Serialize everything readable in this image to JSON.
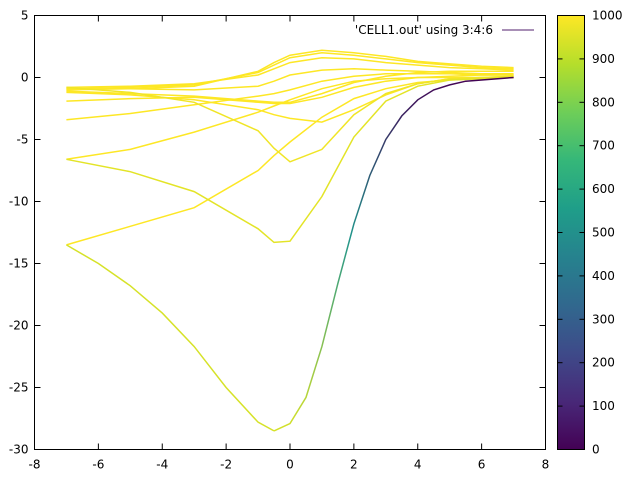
{
  "chart_data": {
    "type": "line",
    "title": "",
    "xlabel": "",
    "ylabel": "",
    "xlim": [
      -8,
      8
    ],
    "ylim": [
      -30,
      5
    ],
    "xticks": [
      -8,
      -6,
      -4,
      -2,
      0,
      2,
      4,
      6,
      8
    ],
    "yticks": [
      -30,
      -25,
      -20,
      -15,
      -10,
      -5,
      0,
      5
    ],
    "grid": false,
    "legend": {
      "position": "top-right",
      "label": "'CELL1.out' using 3:4:6",
      "color": "#8c6a9e"
    },
    "colorbar": {
      "min": 0,
      "max": 1000,
      "ticks": [
        0,
        100,
        200,
        300,
        400,
        500,
        600,
        700,
        800,
        900,
        1000
      ],
      "palette": [
        "#440154",
        "#482878",
        "#3e4a89",
        "#31688e",
        "#26828e",
        "#1f9e89",
        "#35b779",
        "#6ece58",
        "#b5de2b",
        "#fde725"
      ]
    },
    "series": [
      {
        "color_value": 1000,
        "x": [
          -7.0,
          -5.0,
          -3.0,
          -1.0,
          -0.5,
          0.0,
          1.0,
          2.0,
          3.0,
          4.0,
          5.0,
          6.0,
          7.0
        ],
        "y": [
          -13.5,
          -12.0,
          -10.5,
          -7.5,
          -6.3,
          -5.2,
          -3.2,
          -1.7,
          -0.9,
          -0.4,
          -0.2,
          -0.1,
          0.0
        ]
      },
      {
        "color_value": 1000,
        "x": [
          -7.0,
          -5.0,
          -3.0,
          -1.0,
          -0.5,
          0.0,
          1.0,
          2.0,
          3.0,
          4.0,
          5.0,
          6.0,
          7.0
        ],
        "y": [
          -6.6,
          -5.8,
          -4.4,
          -2.8,
          -2.3,
          -1.8,
          -0.9,
          -0.3,
          -0.1,
          0.0,
          0.0,
          0.0,
          0.0
        ]
      },
      {
        "color_value": 1000,
        "x": [
          -7.0,
          -5.0,
          -3.0,
          -1.0,
          -0.5,
          0.0,
          1.0,
          2.0,
          3.0,
          4.0,
          5.0,
          6.0,
          7.0
        ],
        "y": [
          -3.4,
          -2.9,
          -2.2,
          -1.5,
          -1.3,
          -1.0,
          -0.3,
          0.1,
          0.3,
          0.3,
          0.3,
          0.2,
          0.2
        ]
      },
      {
        "color_value": 1000,
        "x": [
          -7.0,
          -5.0,
          -3.0,
          -1.0,
          -0.5,
          0.0,
          1.0,
          2.0,
          3.0,
          4.0,
          5.0,
          6.0,
          7.0
        ],
        "y": [
          -1.9,
          -1.7,
          -1.6,
          -2.0,
          -2.1,
          -2.1,
          -1.6,
          -0.8,
          -0.3,
          0.0,
          0.1,
          0.2,
          0.2
        ]
      },
      {
        "color_value": 1000,
        "x": [
          -7.0,
          -5.0,
          -3.0,
          -1.0,
          -0.5,
          0.0,
          1.0,
          2.0,
          3.0,
          4.0,
          5.0,
          6.0,
          7.0
        ],
        "y": [
          -1.1,
          -1.3,
          -1.5,
          -1.9,
          -2.0,
          -2.0,
          -1.3,
          -0.4,
          0.1,
          0.4,
          0.5,
          0.5,
          0.5
        ]
      },
      {
        "color_value": 1000,
        "x": [
          -7.0,
          -5.0,
          -3.0,
          -1.0,
          -0.5,
          0.0,
          1.0,
          2.0,
          3.0,
          4.0,
          5.0,
          6.0,
          7.0
        ],
        "y": [
          -0.9,
          -0.9,
          -1.0,
          -0.7,
          -0.3,
          0.2,
          0.6,
          0.7,
          0.6,
          0.5,
          0.4,
          0.3,
          0.3
        ]
      },
      {
        "color_value": 1000,
        "x": [
          -7.0,
          -5.0,
          -3.0,
          -1.0,
          -0.5,
          0.0,
          1.0,
          2.0,
          3.0,
          4.0,
          5.0,
          6.0,
          7.0
        ],
        "y": [
          -0.8,
          -0.7,
          -0.5,
          0.2,
          0.7,
          1.2,
          1.6,
          1.5,
          1.2,
          1.0,
          0.8,
          0.7,
          0.6
        ]
      },
      {
        "color_value": 1000,
        "x": [
          -7.0,
          -5.0,
          -3.0,
          -1.0,
          -0.5,
          0.0,
          1.0,
          2.0,
          3.0,
          4.0,
          5.0,
          6.0,
          7.0
        ],
        "y": [
          -0.9,
          -0.8,
          -0.6,
          0.4,
          1.0,
          1.6,
          2.0,
          1.8,
          1.5,
          1.2,
          1.0,
          0.8,
          0.7
        ]
      },
      {
        "color_value": 1000,
        "x": [
          -7.0,
          -5.0,
          -3.0,
          -1.0,
          -0.5,
          0.0,
          1.0,
          2.0,
          3.0,
          4.0,
          5.0,
          6.0,
          7.0
        ],
        "y": [
          -1.0,
          -0.9,
          -0.7,
          0.5,
          1.2,
          1.8,
          2.2,
          2.0,
          1.7,
          1.3,
          1.1,
          0.9,
          0.8
        ]
      },
      {
        "color_value": 1000,
        "x": [
          -7.0,
          -5.0,
          -3.0,
          -1.0,
          -0.5,
          0.0,
          1.0,
          2.0,
          3.0,
          4.0,
          5.0,
          6.0,
          7.0
        ],
        "y": [
          -1.2,
          -1.4,
          -1.8,
          -2.6,
          -3.0,
          -3.3,
          -3.6,
          -2.6,
          -1.4,
          -0.5,
          -0.1,
          0.0,
          0.1
        ]
      },
      {
        "color_value": 980,
        "x": [
          -7.0,
          -5.0,
          -3.0,
          -1.0,
          -0.5,
          0.0,
          1.0,
          2.0,
          3.0,
          4.0,
          5.0,
          6.0,
          7.0
        ],
        "y": [
          -0.8,
          -1.2,
          -2.0,
          -4.3,
          -5.7,
          -6.8,
          -5.8,
          -3.0,
          -1.3,
          -0.5,
          -0.1,
          0.0,
          0.1
        ]
      },
      {
        "color_value": 960,
        "x": [
          -7.0,
          -5.0,
          -3.0,
          -1.0,
          -0.5,
          0.0,
          1.0,
          2.0,
          3.0,
          4.0,
          5.0,
          6.0,
          7.0
        ],
        "y": [
          -6.6,
          -7.6,
          -9.2,
          -12.2,
          -13.3,
          -13.2,
          -9.6,
          -4.8,
          -1.9,
          -0.7,
          -0.2,
          -0.1,
          0.0
        ]
      },
      {
        "color_value": 940,
        "x": [
          -7.0,
          -6.0,
          -5.0,
          -4.0,
          -3.0,
          -2.0,
          -1.0,
          -0.5,
          0.0,
          0.5,
          1.0,
          1.5,
          2.0,
          2.5,
          3.0,
          3.5,
          4.0,
          4.5,
          5.0,
          5.5,
          6.0,
          6.5,
          7.0
        ],
        "y": [
          -13.5,
          -15.0,
          -16.8,
          -19.0,
          -21.7,
          -25.0,
          -27.8,
          -28.5,
          -27.9,
          -25.8,
          -21.7,
          -16.6,
          -11.8,
          -7.9,
          -5.0,
          -3.1,
          -1.8,
          -1.0,
          -0.6,
          -0.3,
          -0.2,
          -0.1,
          0.0
        ]
      }
    ]
  }
}
